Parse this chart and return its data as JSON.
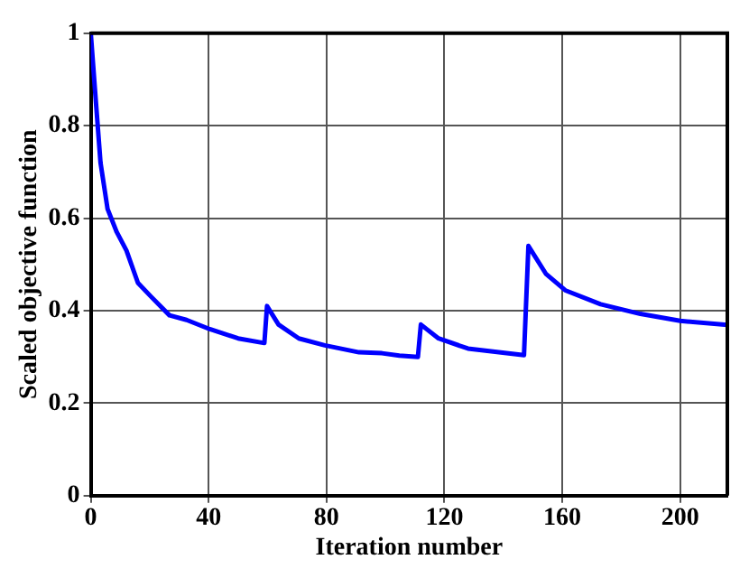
{
  "chart_data": {
    "type": "line",
    "xlabel": "Iteration number",
    "ylabel": "Scaled objective function",
    "x": [
      0,
      1.4,
      3.3,
      5.7,
      8.8,
      12.1,
      16,
      20.5,
      26.7,
      32.5,
      40.4,
      50,
      58.9,
      59.8,
      63.7,
      70.6,
      79.4,
      91,
      98.8,
      104.7,
      111,
      112,
      118,
      128,
      147,
      148.5,
      154.4,
      161,
      173,
      186.5,
      200,
      216
    ],
    "series": [
      {
        "color": "#0000ff",
        "values": [
          1,
          0.88,
          0.72,
          0.62,
          0.57,
          0.53,
          0.46,
          0.43,
          0.39,
          0.38,
          0.36,
          0.34,
          0.33,
          0.41,
          0.37,
          0.34,
          0.325,
          0.31,
          0.308,
          0.303,
          0.3,
          0.37,
          0.34,
          0.318,
          0.304,
          0.54,
          0.48,
          0.444,
          0.414,
          0.393,
          0.378,
          0.369
        ]
      }
    ],
    "xlim": [
      0,
      216
    ],
    "xticks": [
      0,
      40,
      80,
      120,
      160,
      200
    ],
    "ylim": [
      0,
      1
    ],
    "yticks": [
      0,
      0.2,
      0.4,
      0.6,
      0.8,
      1
    ],
    "grid": true,
    "legend": false,
    "marker": "none",
    "line_style": "solid"
  }
}
